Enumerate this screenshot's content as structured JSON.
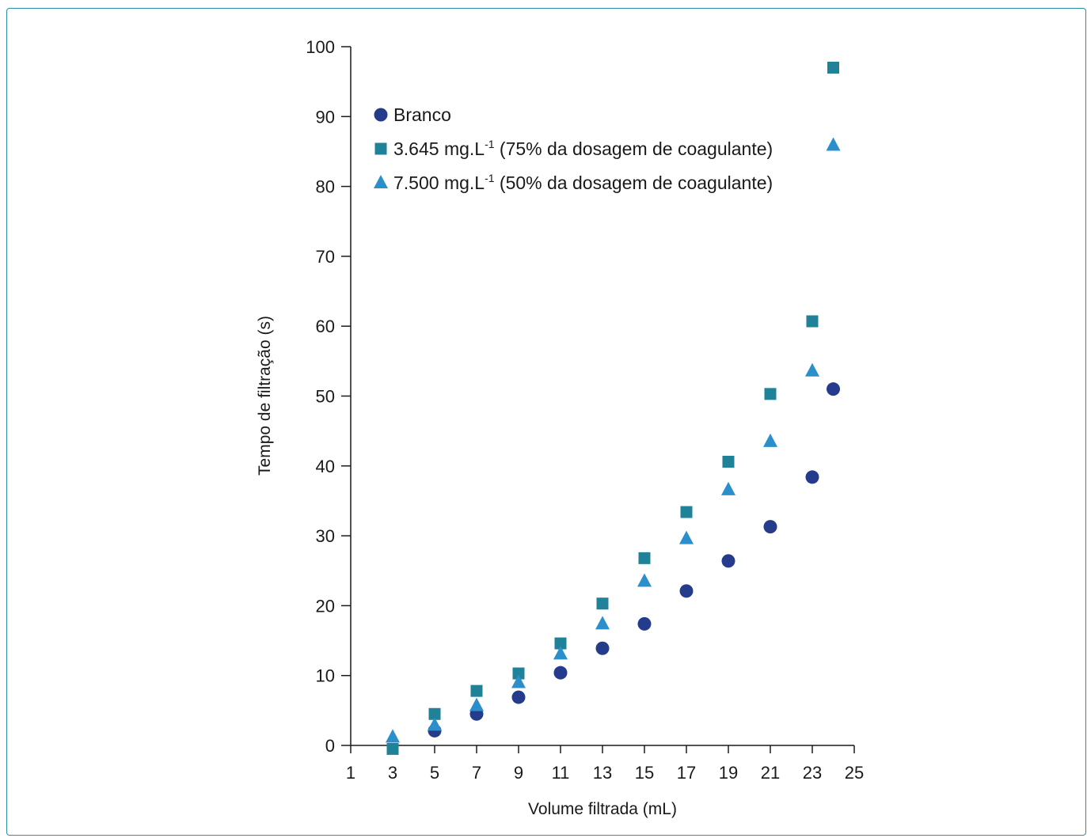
{
  "chart_data": {
    "type": "scatter",
    "xlabel": "Volume filtrada (mL)",
    "ylabel": "Tempo de filtração (s)",
    "xlim": [
      1,
      25
    ],
    "ylim": [
      0,
      100
    ],
    "xticks": [
      "1",
      "3",
      "5",
      "7",
      "9",
      "11",
      "13",
      "15",
      "17",
      "19",
      "21",
      "23",
      "25"
    ],
    "yticks": [
      "0",
      "10",
      "20",
      "30",
      "40",
      "50",
      "60",
      "70",
      "80",
      "90",
      "100"
    ],
    "legend_position": "top-left",
    "series": [
      {
        "name": "Branco",
        "marker": "circle",
        "color": "#253c8c",
        "points": [
          [
            5,
            2.1
          ],
          [
            7,
            4.5
          ],
          [
            9,
            6.9
          ],
          [
            11,
            10.4
          ],
          [
            13,
            13.9
          ],
          [
            15,
            17.4
          ],
          [
            17,
            22.1
          ],
          [
            19,
            26.4
          ],
          [
            21,
            31.3
          ],
          [
            23,
            38.4
          ],
          [
            24,
            51.0
          ]
        ]
      },
      {
        "name": "3.645 mg.L",
        "name_sup": "-1",
        "name_suffix": " (75% da dosagem de coagulante)",
        "marker": "square",
        "color": "#1f8299",
        "points": [
          [
            3,
            -0.5
          ],
          [
            5,
            4.5
          ],
          [
            7,
            7.8
          ],
          [
            9,
            10.3
          ],
          [
            11,
            14.6
          ],
          [
            13,
            20.3
          ],
          [
            15,
            26.8
          ],
          [
            17,
            33.4
          ],
          [
            19,
            40.6
          ],
          [
            21,
            50.3
          ],
          [
            23,
            60.7
          ],
          [
            24,
            97.0
          ]
        ]
      },
      {
        "name": "7.500 mg.L",
        "name_sup": "-1",
        "name_suffix": " (50% da dosagem de coagulante)",
        "marker": "triangle",
        "color": "#2b8fcc",
        "points": [
          [
            3,
            1.2
          ],
          [
            5,
            2.9
          ],
          [
            7,
            5.7
          ],
          [
            9,
            9.0
          ],
          [
            11,
            13.1
          ],
          [
            13,
            17.4
          ],
          [
            15,
            23.5
          ],
          [
            17,
            29.6
          ],
          [
            19,
            36.6
          ],
          [
            21,
            43.5
          ],
          [
            23,
            53.6
          ],
          [
            24,
            85.9
          ]
        ]
      }
    ]
  }
}
